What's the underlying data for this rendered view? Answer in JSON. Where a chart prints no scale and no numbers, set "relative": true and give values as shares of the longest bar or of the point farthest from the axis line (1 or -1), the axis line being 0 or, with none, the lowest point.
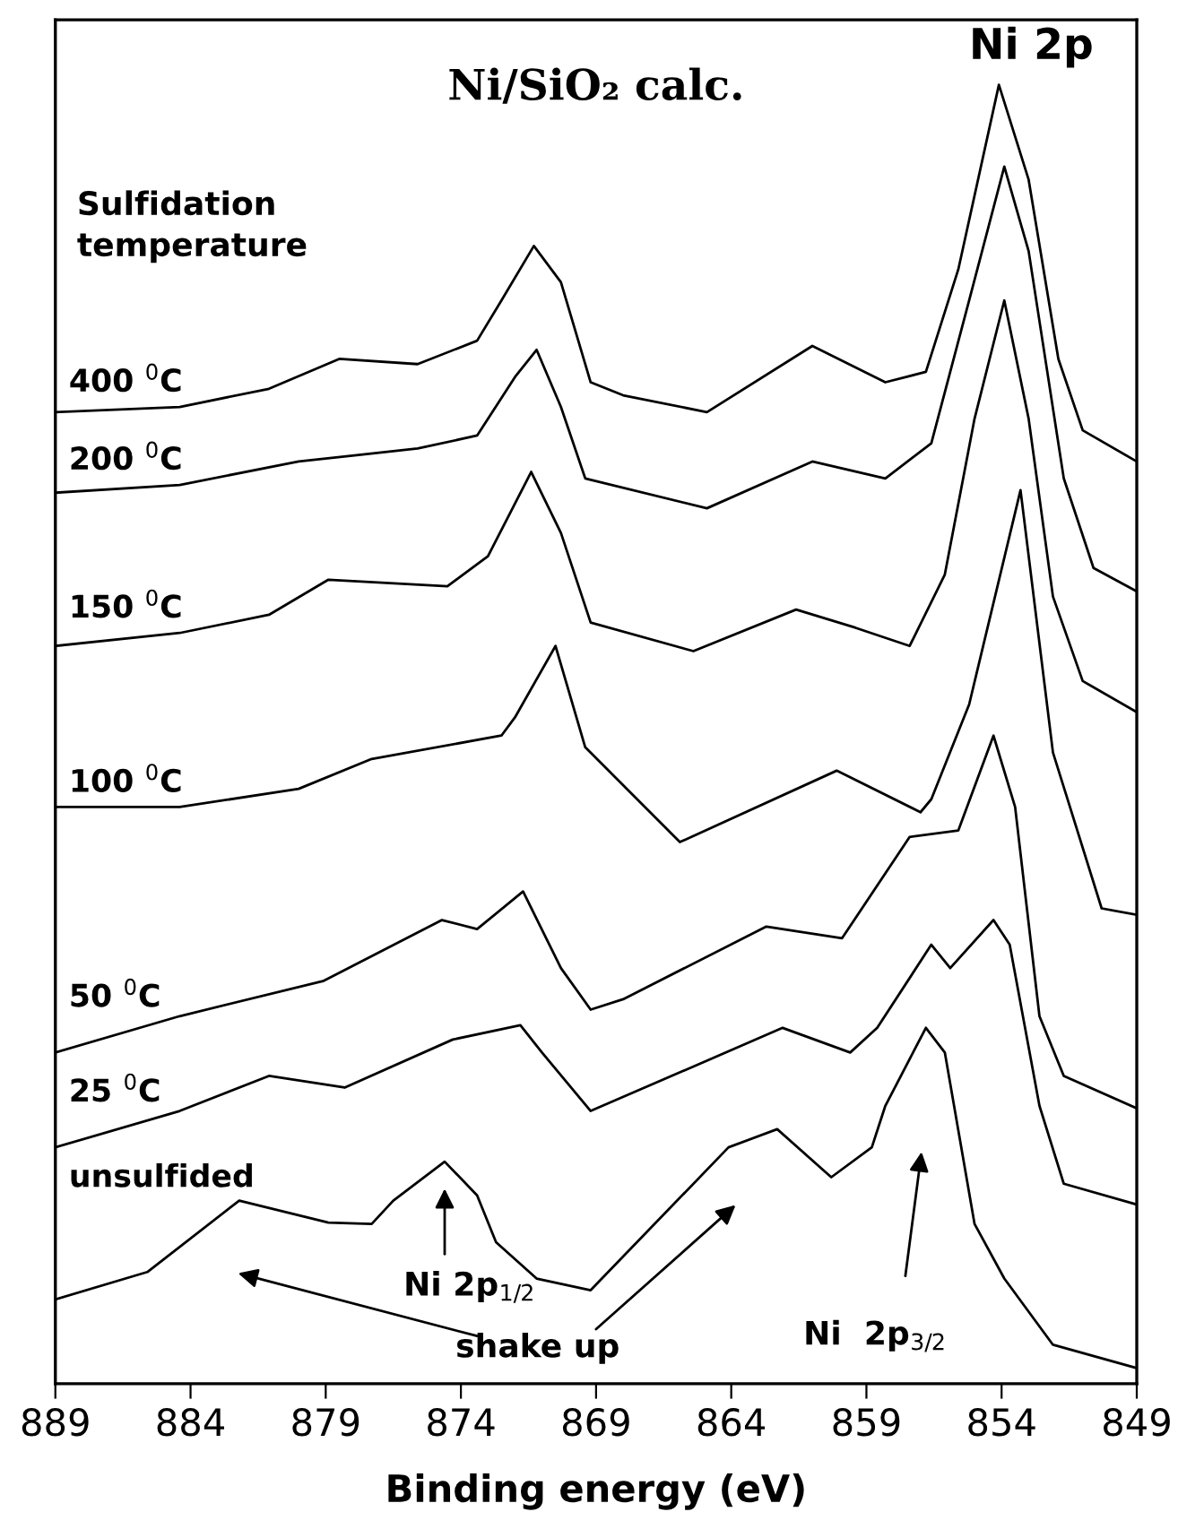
{
  "chart_data": {
    "type": "line",
    "title": "Ni/SiO₂ calc.",
    "xlabel": "Binding energy (eV)",
    "legend_title": "Sulfidation\ntemperature",
    "relative": true,
    "tick_labels": "x",
    "xlim": [
      889,
      849
    ],
    "xticks": [
      889,
      884,
      879,
      874,
      869,
      864,
      859,
      854,
      849
    ],
    "annotations": [
      "Ni 2p",
      "Ni 2p$_{1/2}$",
      "shake up",
      "Ni  2p$_{3/2}$"
    ],
    "series": [
      {
        "name": "400 $^{0}$C",
        "color": "#000000",
        "x": [
          889,
          884.4,
          881.1,
          878.5,
          875.6,
          873.4,
          872.5,
          871.3,
          870.3,
          869.2,
          868.0,
          864.9,
          861.0,
          858.3,
          856.8,
          855.6,
          854.1,
          853.0,
          851.9,
          851.0,
          849
        ],
        "values": [
          0.748,
          0.752,
          0.766,
          0.789,
          0.785,
          0.803,
          0.834,
          0.876,
          0.848,
          0.771,
          0.761,
          0.748,
          0.799,
          0.771,
          0.779,
          0.858,
          1.0,
          0.927,
          0.789,
          0.734,
          0.71
        ]
      },
      {
        "name": "200 $^{0}$C",
        "color": "#000000",
        "x": [
          889,
          884.4,
          880.0,
          875.6,
          873.4,
          872.0,
          871.2,
          870.3,
          869.4,
          864.9,
          861.0,
          858.3,
          856.6,
          855.2,
          853.9,
          853.0,
          851.7,
          850.6,
          849
        ],
        "values": [
          0.686,
          0.692,
          0.71,
          0.72,
          0.73,
          0.775,
          0.796,
          0.752,
          0.697,
          0.674,
          0.71,
          0.697,
          0.724,
          0.834,
          0.937,
          0.872,
          0.697,
          0.628,
          0.61
        ]
      },
      {
        "name": "150 $^{0}$C",
        "color": "#000000",
        "x": [
          889,
          884.4,
          881.1,
          878.9,
          874.5,
          873.0,
          871.4,
          870.3,
          869.2,
          865.4,
          861.6,
          859.4,
          857.4,
          856.1,
          855.0,
          853.9,
          853.0,
          852.1,
          851.0,
          849
        ],
        "values": [
          0.568,
          0.578,
          0.592,
          0.619,
          0.614,
          0.637,
          0.702,
          0.655,
          0.586,
          0.564,
          0.596,
          0.582,
          0.568,
          0.623,
          0.743,
          0.834,
          0.743,
          0.606,
          0.541,
          0.517
        ]
      },
      {
        "name": "100 $^{0}$C",
        "color": "#000000",
        "x": [
          889,
          884.4,
          880.0,
          877.3,
          872.5,
          872.0,
          870.5,
          869.4,
          865.9,
          860.1,
          857.0,
          856.6,
          855.2,
          853.3,
          852.1,
          850.3,
          849
        ],
        "values": [
          0.444,
          0.444,
          0.458,
          0.481,
          0.499,
          0.513,
          0.568,
          0.49,
          0.417,
          0.472,
          0.44,
          0.45,
          0.523,
          0.688,
          0.486,
          0.366,
          0.361
        ]
      },
      {
        "name": "50 $^{0}$C",
        "color": "#000000",
        "x": [
          889,
          884.4,
          879.1,
          874.7,
          873.4,
          871.7,
          870.3,
          869.2,
          868.0,
          862.7,
          859.9,
          857.4,
          855.6,
          854.3,
          853.5,
          852.6,
          851.7,
          849
        ],
        "values": [
          0.255,
          0.283,
          0.31,
          0.357,
          0.35,
          0.379,
          0.32,
          0.288,
          0.296,
          0.352,
          0.343,
          0.421,
          0.426,
          0.499,
          0.444,
          0.283,
          0.237,
          0.212
        ]
      },
      {
        "name": "25 $^{0}$C",
        "color": "#000000",
        "x": [
          889,
          884.4,
          881.1,
          878.3,
          874.3,
          871.8,
          871.0,
          869.2,
          862.1,
          859.6,
          858.6,
          856.6,
          855.9,
          854.3,
          853.7,
          852.6,
          851.7,
          849
        ],
        "values": [
          0.182,
          0.21,
          0.237,
          0.228,
          0.265,
          0.276,
          0.255,
          0.21,
          0.274,
          0.255,
          0.274,
          0.338,
          0.32,
          0.357,
          0.338,
          0.214,
          0.154,
          0.138
        ]
      },
      {
        "name": "unsulfided",
        "color": "#000000",
        "x": [
          889,
          885.6,
          882.2,
          878.9,
          877.3,
          876.5,
          874.6,
          873.4,
          872.7,
          871.2,
          869.2,
          864.1,
          862.3,
          860.3,
          858.8,
          858.3,
          856.8,
          856.1,
          855.0,
          853.9,
          852.1,
          849
        ],
        "values": [
          0.065,
          0.086,
          0.141,
          0.124,
          0.123,
          0.141,
          0.171,
          0.145,
          0.109,
          0.081,
          0.072,
          0.182,
          0.196,
          0.159,
          0.182,
          0.214,
          0.274,
          0.255,
          0.123,
          0.081,
          0.03,
          0.012
        ]
      }
    ]
  }
}
